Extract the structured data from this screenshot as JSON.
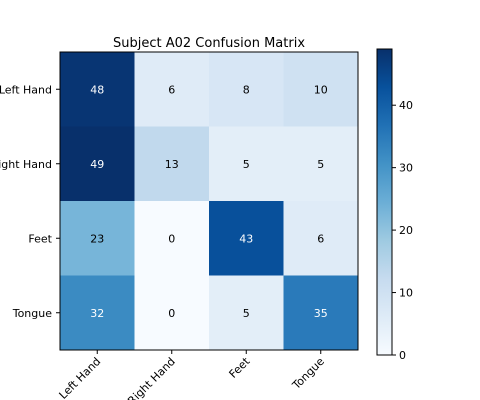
{
  "chart_data": {
    "type": "heatmap",
    "title": "Subject A02 Confusion Matrix",
    "xlabel": "",
    "ylabel": "",
    "x_categories": [
      "Left Hand",
      "Right Hand",
      "Feet",
      "Tongue"
    ],
    "y_categories": [
      "Left Hand",
      "Right Hand",
      "Feet",
      "Tongue"
    ],
    "values": [
      [
        48,
        6,
        8,
        10
      ],
      [
        49,
        13,
        5,
        5
      ],
      [
        23,
        0,
        43,
        6
      ],
      [
        32,
        0,
        5,
        35
      ]
    ],
    "colormap": "Blues",
    "color_range": [
      0,
      49
    ],
    "colorbar_ticks": [
      0,
      10,
      20,
      30,
      40
    ],
    "x_tick_rotation_deg": 45,
    "grid": false
  }
}
